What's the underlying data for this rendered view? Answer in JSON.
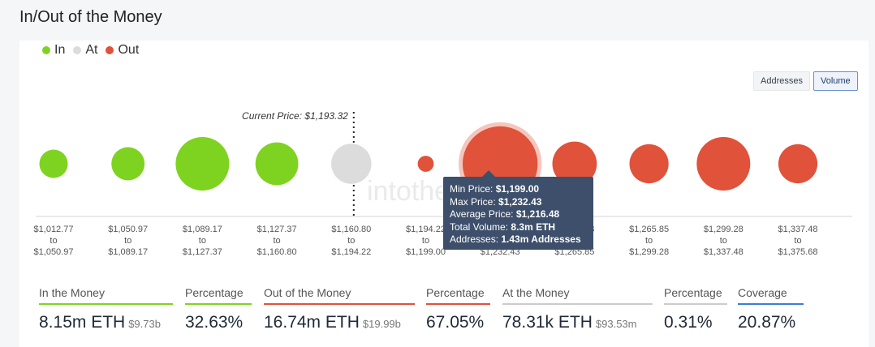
{
  "page": {
    "title": "In/Out of the Money"
  },
  "legend": [
    {
      "label": "In",
      "color": "#7ed321"
    },
    {
      "label": "At",
      "color": "#dcdcdc"
    },
    {
      "label": "Out",
      "color": "#e0523a"
    }
  ],
  "toggle": {
    "addresses_label": "Addresses",
    "volume_label": "Volume",
    "active": "Volume"
  },
  "watermark": "intotheblock",
  "current_price_label": "Current Price: $1,193.32",
  "tooltip": {
    "min_price_label": "Min Price:",
    "min_price_value": "$1,199.00",
    "max_price_label": "Max Price:",
    "max_price_value": "$1,232.43",
    "avg_price_label": "Average Price:",
    "avg_price_value": "$1,216.48",
    "total_volume_label": "Total Volume:",
    "total_volume_value": "8.3m ETH",
    "addresses_label": "Addresses:",
    "addresses_value": "1.43m Addresses"
  },
  "chart_data": {
    "type": "scatter",
    "title": "In/Out of the Money",
    "categories": [
      {
        "from": "$1,012.77",
        "to": "$1,050.97",
        "status": "in"
      },
      {
        "from": "$1,050.97",
        "to": "$1,089.17",
        "status": "in"
      },
      {
        "from": "$1,089.17",
        "to": "$1,127.37",
        "status": "in"
      },
      {
        "from": "$1,127.37",
        "to": "$1,160.80",
        "status": "in"
      },
      {
        "from": "$1,160.80",
        "to": "$1,194.22",
        "status": "at"
      },
      {
        "from": "$1,194.22",
        "to": "$1,199.00",
        "status": "out"
      },
      {
        "from": "$1,199.00",
        "to": "$1,232.43",
        "status": "out"
      },
      {
        "from": "$1,232.43",
        "to": "$1,265.85",
        "status": "out"
      },
      {
        "from": "$1,265.85",
        "to": "$1,299.28",
        "status": "out"
      },
      {
        "from": "$1,299.28",
        "to": "$1,337.48",
        "status": "out"
      },
      {
        "from": "$1,337.48",
        "to": "$1,375.68",
        "status": "out"
      }
    ],
    "relative_size": [
      0.53,
      0.62,
      1.0,
      0.8,
      0.75,
      0.3,
      1.4,
      0.83,
      0.73,
      1.0,
      0.73
    ],
    "highlight_index": 6,
    "current_price": 1193.32,
    "grid": false
  },
  "stats": [
    {
      "label": "In the Money",
      "value": "8.15m ETH",
      "sub": "$9.73b",
      "color": "#7ed321"
    },
    {
      "label": "Percentage",
      "value": "32.63%",
      "sub": "",
      "color": "#7ed321"
    },
    {
      "label": "Out of the Money",
      "value": "16.74m ETH",
      "sub": "$19.99b",
      "color": "#e0523a"
    },
    {
      "label": "Percentage",
      "value": "67.05%",
      "sub": "",
      "color": "#e0523a"
    },
    {
      "label": "At the Money",
      "value": "78.31k ETH",
      "sub": "$93.53m",
      "color": "#cccccc"
    },
    {
      "label": "Percentage",
      "value": "0.31%",
      "sub": "",
      "color": "#cccccc"
    },
    {
      "label": "Coverage",
      "value": "20.87%",
      "sub": "",
      "color": "#3b7dd8"
    }
  ]
}
